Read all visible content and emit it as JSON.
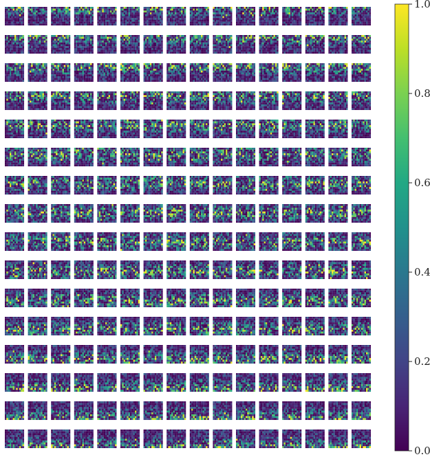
{
  "chart_data": {
    "type": "heatmap",
    "title": "",
    "layout": {
      "rows": 16,
      "cols": 16
    },
    "cell_grid": {
      "rows": 10,
      "cols": 12
    },
    "colormap": "viridis",
    "vmin": 0.0,
    "vmax": 1.0,
    "colorbar": {
      "ticks": [
        0.0,
        0.2,
        0.4,
        0.6,
        0.8,
        1.0
      ],
      "tick_labels": [
        "0.0",
        "0.2",
        "0.4",
        "0.6",
        "0.8",
        "1.0"
      ]
    },
    "row_band_trend": "top rows bright near upper edge of each map, middle rows scattered bright pixels, bottom rows bright near lower edge",
    "grid": false,
    "axes_visible": false
  }
}
